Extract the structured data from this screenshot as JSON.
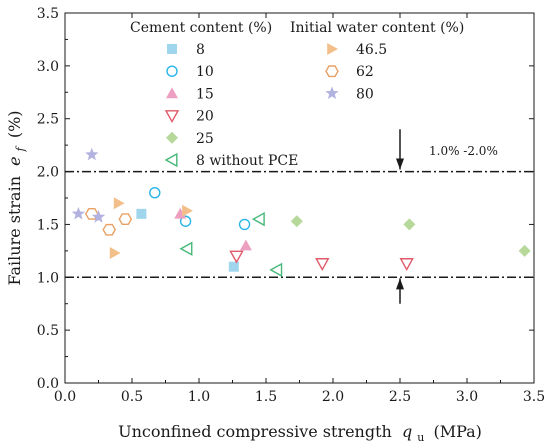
{
  "chart_data": {
    "type": "scatter",
    "xlabel": "Unconfined compressive strength",
    "xlabel_symbol": "q",
    "xlabel_sub": "u",
    "xlabel_unit": "(MPa)",
    "ylabel": "Failure strain",
    "ylabel_symbol": "e",
    "ylabel_sub": "f",
    "ylabel_unit": "(%)",
    "xlim": [
      0,
      3.5
    ],
    "ylim": [
      0,
      3.5
    ],
    "xticks": [
      "0.0",
      "0.5",
      "1.0",
      "1.5",
      "2.0",
      "2.5",
      "3.0",
      "3.5"
    ],
    "yticks": [
      "0.0",
      "0.5",
      "1.0",
      "1.5",
      "2.0",
      "2.5",
      "3.0",
      "3.5"
    ],
    "grid": false,
    "legend_headers": [
      "Cement content (%)",
      "Initial water content (%)"
    ],
    "reference_lines": [
      2.0,
      1.0
    ],
    "annotation": "1.0% -2.0%",
    "annotation_arrows": [
      {
        "x": 2.5,
        "from": 2.4,
        "to": 2.02
      },
      {
        "x": 2.5,
        "from": 0.75,
        "to": 0.99
      }
    ],
    "series": [
      {
        "name": "8",
        "group": "cement",
        "marker": "square",
        "color": "#9fd6ee",
        "filled": true,
        "points": [
          [
            0.57,
            1.6
          ],
          [
            1.26,
            1.1
          ]
        ]
      },
      {
        "name": "10",
        "group": "cement",
        "marker": "circle",
        "color": "#2ab5e8",
        "filled": false,
        "points": [
          [
            0.67,
            1.8
          ],
          [
            0.9,
            1.53
          ],
          [
            1.34,
            1.5
          ]
        ]
      },
      {
        "name": "15",
        "group": "cement",
        "marker": "triangle-up",
        "color": "#ec9fc0",
        "filled": true,
        "points": [
          [
            0.86,
            1.6
          ],
          [
            1.35,
            1.3
          ]
        ]
      },
      {
        "name": "20",
        "group": "cement",
        "marker": "triangle-down",
        "color": "#e05a6a",
        "filled": false,
        "points": [
          [
            1.28,
            1.2
          ],
          [
            1.92,
            1.13
          ],
          [
            2.55,
            1.13
          ]
        ]
      },
      {
        "name": "25",
        "group": "cement",
        "marker": "diamond",
        "color": "#b6d89a",
        "filled": true,
        "points": [
          [
            1.73,
            1.53
          ],
          [
            2.57,
            1.5
          ],
          [
            3.43,
            1.25
          ]
        ]
      },
      {
        "name": "8 without PCE",
        "group": "cement",
        "marker": "triangle-left",
        "color": "#47b87a",
        "filled": false,
        "points": [
          [
            0.91,
            1.27
          ],
          [
            1.45,
            1.55
          ],
          [
            1.58,
            1.07
          ]
        ]
      },
      {
        "name": "46.5",
        "group": "water",
        "marker": "triangle-right",
        "color": "#f2bf8a",
        "filled": true,
        "points": [
          [
            0.4,
            1.7
          ],
          [
            0.91,
            1.63
          ],
          [
            0.37,
            1.23
          ]
        ]
      },
      {
        "name": "62",
        "group": "water",
        "marker": "hexagon",
        "color": "#e8a064",
        "filled": false,
        "points": [
          [
            0.2,
            1.6
          ],
          [
            0.45,
            1.55
          ],
          [
            0.33,
            1.45
          ]
        ]
      },
      {
        "name": "80",
        "group": "water",
        "marker": "star",
        "color": "#b2b2e0",
        "filled": true,
        "points": [
          [
            0.2,
            2.16
          ],
          [
            0.1,
            1.6
          ],
          [
            0.25,
            1.57
          ]
        ]
      }
    ]
  }
}
